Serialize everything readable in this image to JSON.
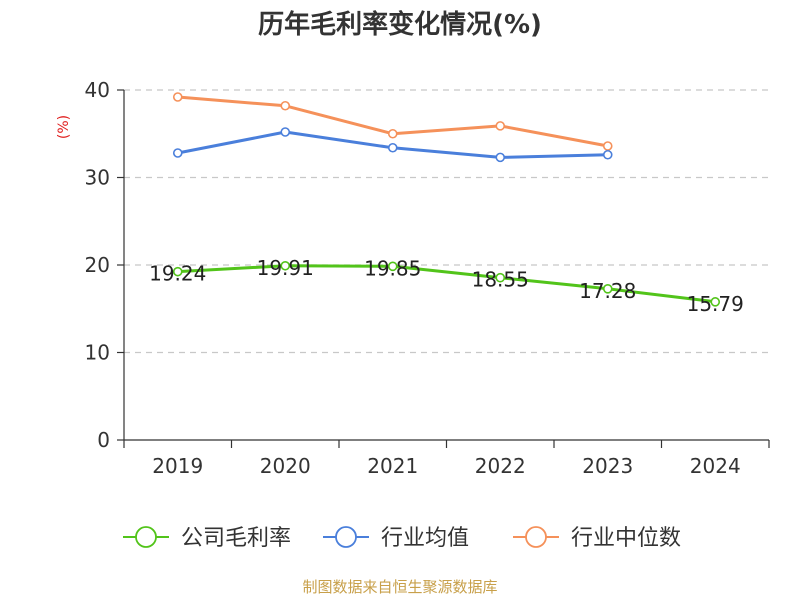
{
  "chart_data": {
    "type": "line",
    "title": "历年毛利率变化情况(%)",
    "ylabel": "(%)",
    "categories": [
      "2019",
      "2020",
      "2021",
      "2022",
      "2023",
      "2024"
    ],
    "ylim": [
      0,
      40
    ],
    "yticks": [
      "0",
      "10",
      "20",
      "30",
      "40"
    ],
    "grid": true,
    "legend_position": "bottom",
    "series": [
      {
        "name": "公司毛利率",
        "color": "#52c41a",
        "values": [
          19.24,
          19.91,
          19.85,
          18.55,
          17.28,
          15.79
        ],
        "labels": [
          "19.24",
          "19.91",
          "19.85",
          "18.55",
          "17.28",
          "15.79"
        ]
      },
      {
        "name": "行业均值",
        "color": "#4a7fdb",
        "values": [
          32.8,
          35.2,
          33.4,
          32.3,
          32.6,
          null
        ]
      },
      {
        "name": "行业中位数",
        "color": "#f5915a",
        "values": [
          39.2,
          38.2,
          35.0,
          35.9,
          33.6,
          null
        ]
      }
    ],
    "source": "制图数据来自恒生聚源数据库"
  }
}
